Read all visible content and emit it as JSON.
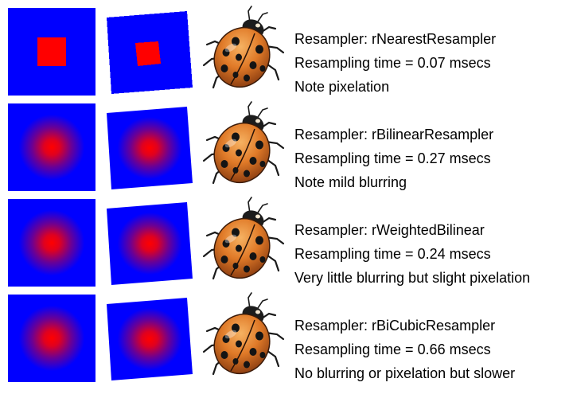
{
  "colors": {
    "background": "#ffffff",
    "square_blue": "#0000ff",
    "square_red": "#ff0000",
    "bug_orange": "#e07a28",
    "bug_black": "#111111"
  },
  "rows": [
    {
      "resampler": "Resampler: rNearestResampler",
      "time": "Resampling time = 0.07 msecs",
      "note": "Note pixelation",
      "style": "nearest"
    },
    {
      "resampler": "Resampler: rBilinearResampler",
      "time": "Resampling time = 0.27 msecs",
      "note": "Note mild blurring",
      "style": "bilinear"
    },
    {
      "resampler": "Resampler: rWeightedBilinear",
      "time": "Resampling time = 0.24 msecs",
      "note": "Very little blurring but slight pixelation",
      "style": "weighted"
    },
    {
      "resampler": "Resampler: rBiCubicResampler",
      "time": "Resampling time = 0.66 msecs",
      "note": "No blurring or pixelation but slower",
      "style": "bicubic"
    }
  ]
}
